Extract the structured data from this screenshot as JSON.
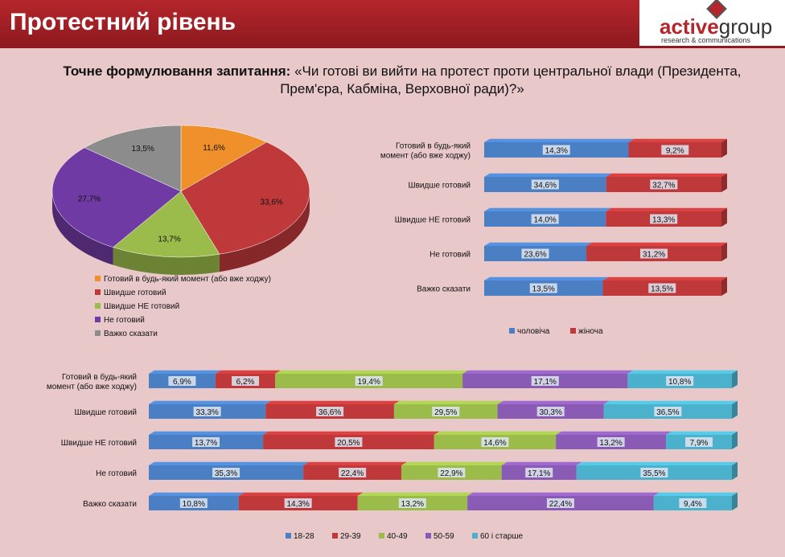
{
  "header": {
    "title": "Протестний рівень",
    "logo_accent": "active",
    "logo_main": "group",
    "logo_tagline": "research & communications"
  },
  "question": {
    "prefix": "Точне формулювання запитання:",
    "text": " «Чи готові ви вийти на протест проти центральної влади (Президента, Прем'єра, Кабміна, Верховної ради)?»"
  },
  "colors": {
    "orange": "#f0902a",
    "red": "#c0393a",
    "green": "#9bbb4a",
    "purple": "#6f3aa3",
    "gray": "#8c8c8c",
    "blue": "#4a7fc4",
    "teal": "#4bb1cc"
  },
  "chart_data": [
    {
      "type": "pie",
      "categories": [
        "Готовий в будь-який момент (або вже ходжу)",
        "Швидше готовий",
        "Швидше НЕ готовий",
        "Не готовий",
        "Важко сказати"
      ],
      "values": [
        11.6,
        33.6,
        13.7,
        27.7,
        13.5
      ],
      "labels": [
        "11,6%",
        "33,6%",
        "13,7%",
        "27,7%",
        "13,5%"
      ],
      "colors": [
        "#f0902a",
        "#c0393a",
        "#9bbb4a",
        "#6f3aa3",
        "#8c8c8c"
      ],
      "legend": "bottom"
    },
    {
      "type": "bar",
      "orientation": "horizontal-stacked",
      "categories": [
        "Готовий в будь-який момент (або вже ходжу)",
        "Швидше готовий",
        "Швидше НЕ готовий",
        "Не готовий",
        "Важко сказати"
      ],
      "series": [
        {
          "name": "чоловіча",
          "values": [
            14.3,
            34.6,
            14.0,
            23.6,
            13.5
          ],
          "labels": [
            "14,3%",
            "34,6%",
            "14,0%",
            "23,6%",
            "13,5%"
          ],
          "color": "#4a7fc4"
        },
        {
          "name": "жіноча",
          "values": [
            9.2,
            32.7,
            13.3,
            31.2,
            13.5
          ],
          "labels": [
            "9,2%",
            "32,7%",
            "13,3%",
            "31,2%",
            "13,5%"
          ],
          "color": "#c0393a"
        }
      ],
      "legend": "bottom"
    },
    {
      "type": "bar",
      "orientation": "horizontal-stacked",
      "categories": [
        "Готовий в будь-який момент (або вже ходжу)",
        "Швидше готовий",
        "Швидше НЕ готовий",
        "Не готовий",
        "Важко сказати"
      ],
      "series": [
        {
          "name": "18-28",
          "values": [
            6.9,
            33.3,
            13.7,
            35.3,
            10.8
          ],
          "labels": [
            "6,9%",
            "33,3%",
            "13,7%",
            "35,3%",
            "10,8%"
          ],
          "color": "#4a7fc4"
        },
        {
          "name": "29-39",
          "values": [
            6.2,
            36.6,
            20.5,
            22.4,
            14.3
          ],
          "labels": [
            "6,2%",
            "36,6%",
            "20,5%",
            "22,4%",
            "14,3%"
          ],
          "color": "#c0393a"
        },
        {
          "name": "40-49",
          "values": [
            19.4,
            29.5,
            14.6,
            22.9,
            13.2
          ],
          "labels": [
            "19,4%",
            "29,5%",
            "14,6%",
            "22,9%",
            "13,2%"
          ],
          "color": "#9bbb4a"
        },
        {
          "name": "50-59",
          "values": [
            17.1,
            30.3,
            13.2,
            17.1,
            22.4
          ],
          "labels": [
            "17,1%",
            "30,3%",
            "13,2%",
            "17,1%",
            "22,4%"
          ],
          "color": "#8a5bb5"
        },
        {
          "name": "60 і старше",
          "values": [
            10.8,
            36.5,
            7.9,
            35.5,
            9.4
          ],
          "labels": [
            "10,8%",
            "36,5%",
            "7,9%",
            "35,5%",
            "9,4%"
          ],
          "color": "#4bb1cc"
        }
      ],
      "legend": "bottom"
    }
  ]
}
